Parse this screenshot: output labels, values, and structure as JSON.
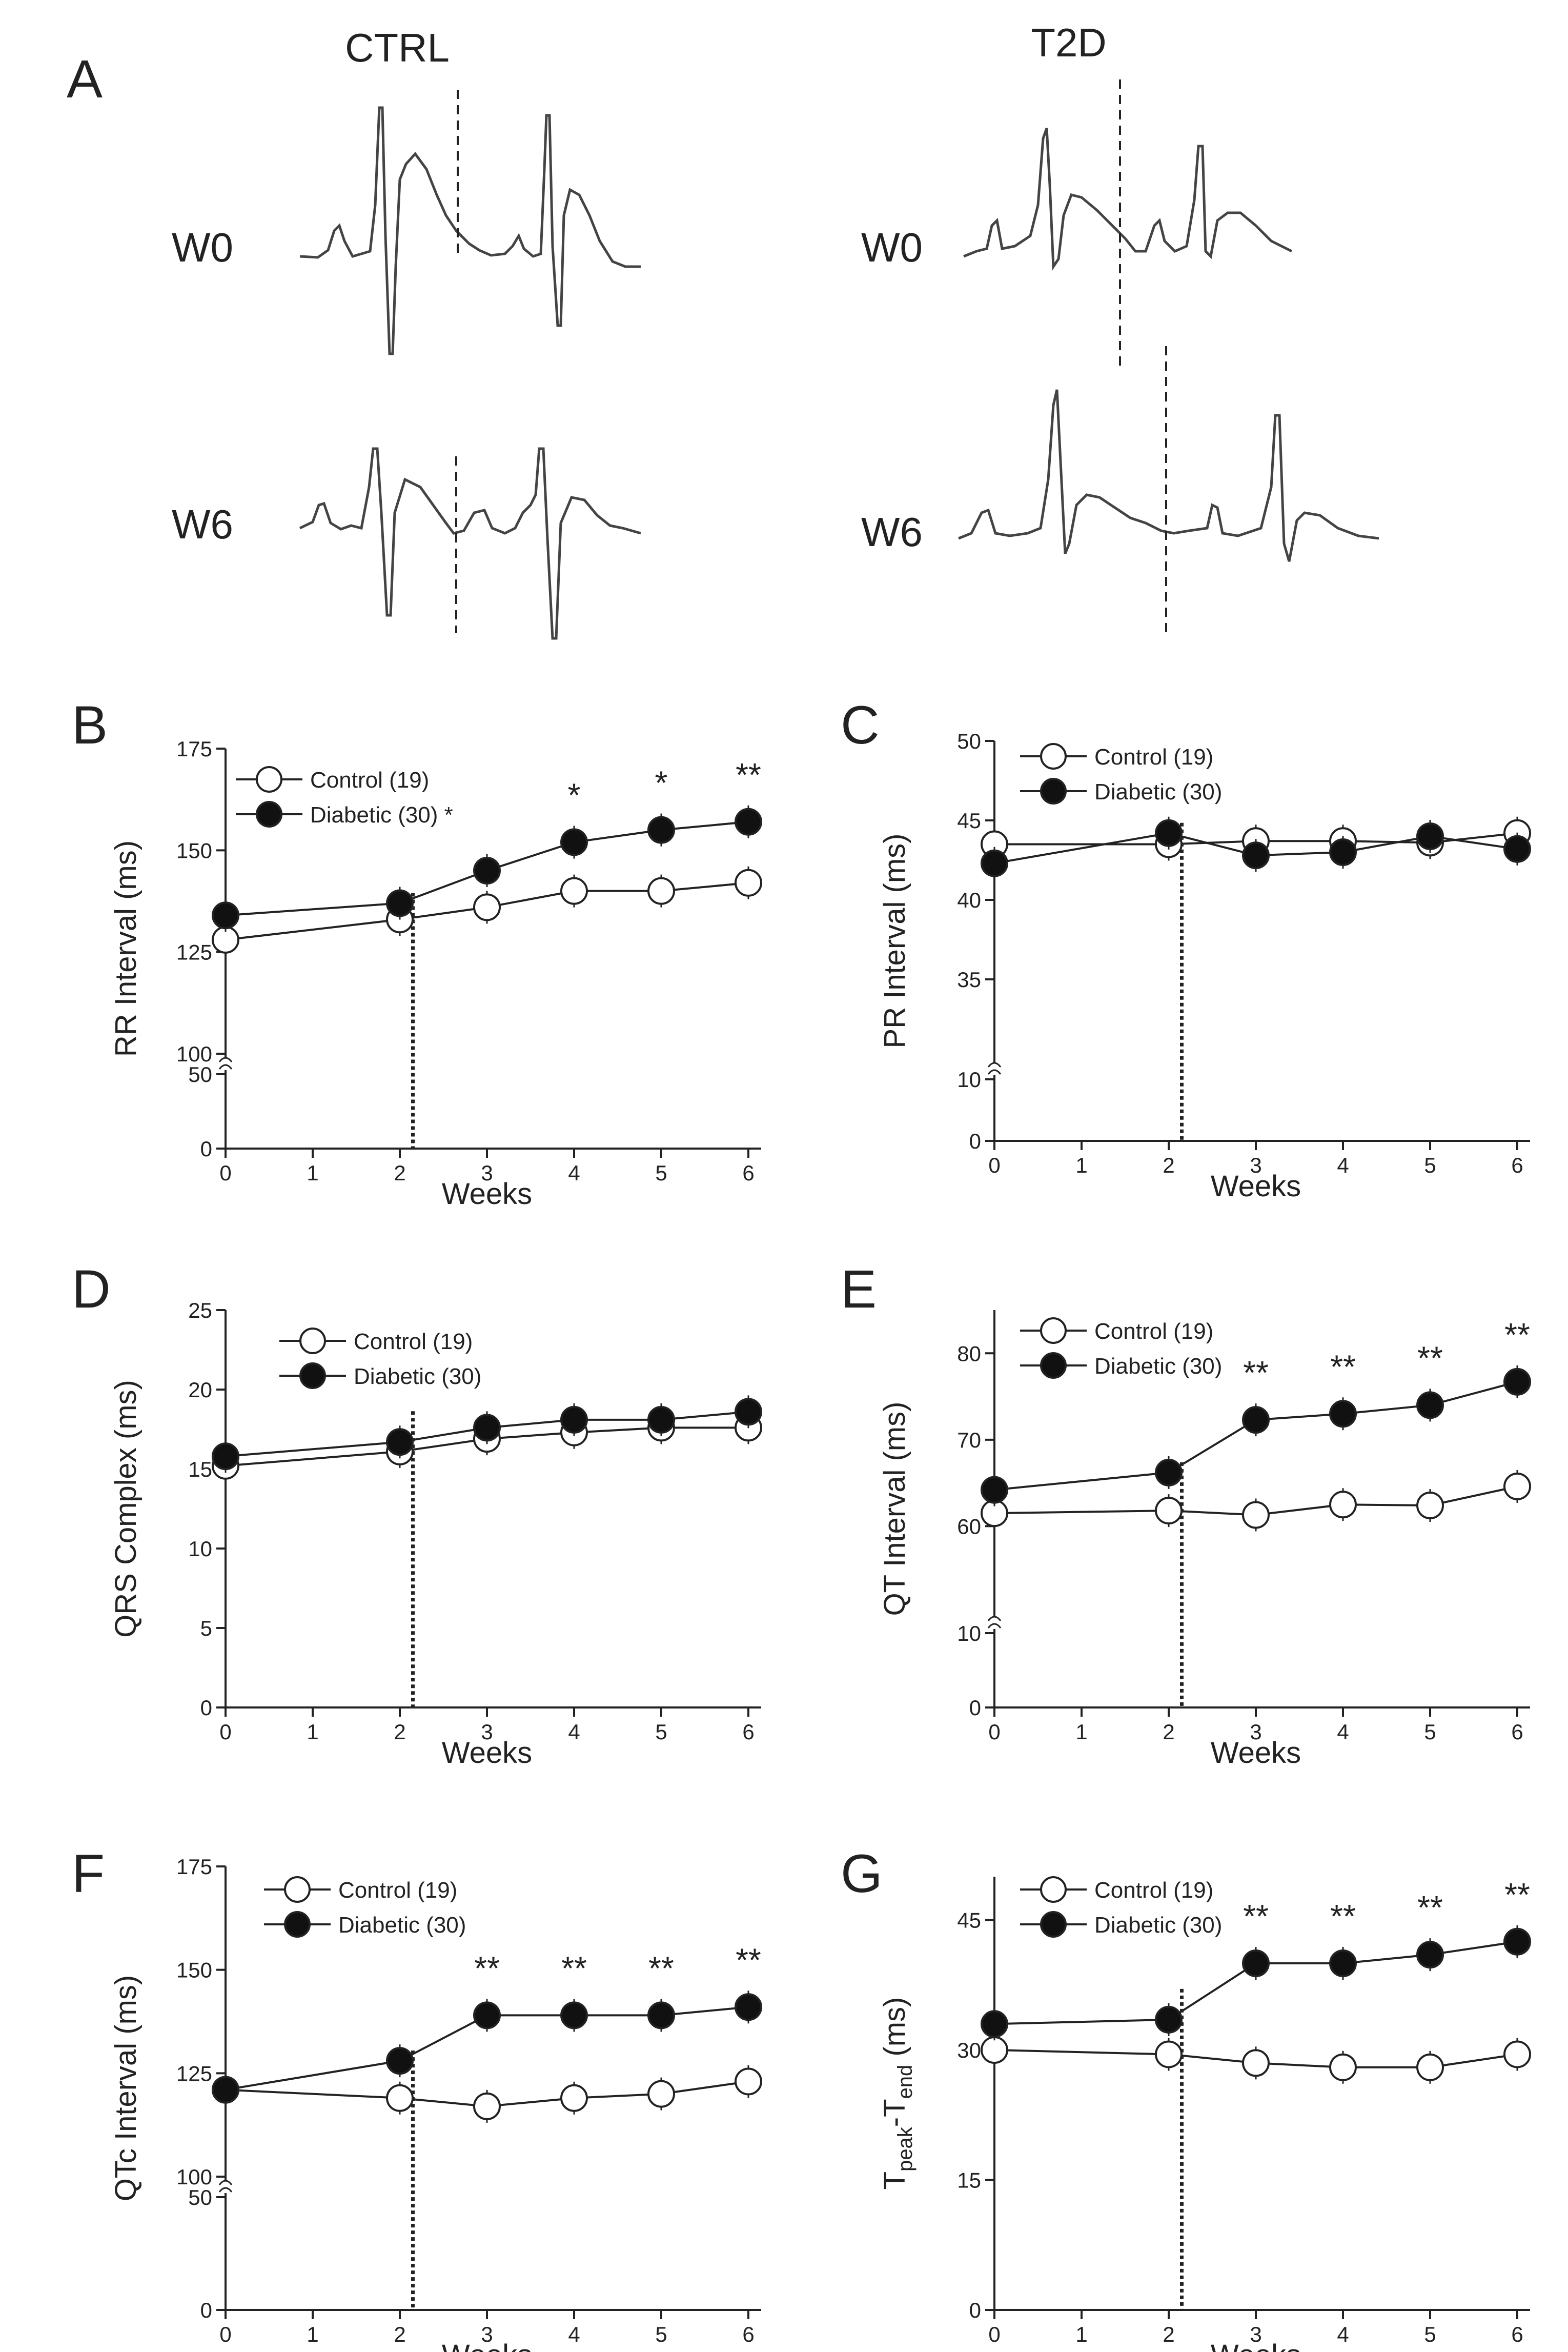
{
  "panel_a": {
    "letter": "A",
    "columns": [
      {
        "title": "CTRL",
        "rows": [
          "W0",
          "W6"
        ]
      },
      {
        "title": "T2D",
        "rows": [
          "W0",
          "W6"
        ]
      }
    ]
  },
  "colors": {
    "axis": "#222222",
    "control_fill": "#ffffff",
    "diabetic_fill": "#111111",
    "trace": "#444444"
  },
  "chart_data": [
    {
      "panel": "B",
      "type": "line",
      "xlabel": "Weeks",
      "ylabel": "RR Interval (ms)",
      "x": [
        0,
        2,
        3,
        4,
        5,
        6
      ],
      "xticks": [
        "0",
        "1",
        "2",
        "3",
        "4",
        "5",
        "6"
      ],
      "axis_break": {
        "lower": [
          0,
          50
        ],
        "upper": [
          100,
          175
        ]
      },
      "yticks": [
        0,
        50,
        100,
        125,
        150,
        175
      ],
      "intervention_week": 2.15,
      "series": [
        {
          "name": "Control (19)",
          "marker": "open",
          "values": [
            128,
            133,
            136,
            140,
            140,
            142
          ]
        },
        {
          "name": "Diabetic (30)",
          "marker": "filled",
          "values": [
            134,
            137,
            145,
            152,
            155,
            157
          ]
        }
      ],
      "legend_mark": "*",
      "significance": [
        {
          "x": 4,
          "label": "*"
        },
        {
          "x": 5,
          "label": "*"
        },
        {
          "x": 6,
          "label": "**"
        }
      ]
    },
    {
      "panel": "C",
      "type": "line",
      "xlabel": "Weeks",
      "ylabel": "PR Interval (ms)",
      "x": [
        0,
        2,
        3,
        4,
        5,
        6
      ],
      "xticks": [
        "0",
        "1",
        "2",
        "3",
        "4",
        "5",
        "6"
      ],
      "axis_break": {
        "lower": [
          0,
          10
        ],
        "upper": [
          30,
          50
        ]
      },
      "yticks": [
        0,
        10,
        35,
        40,
        45,
        50
      ],
      "intervention_week": 2.15,
      "series": [
        {
          "name": "Control (19)",
          "marker": "open",
          "values": [
            43.5,
            43.5,
            43.7,
            43.7,
            43.6,
            44.2
          ]
        },
        {
          "name": "Diabetic (30)",
          "marker": "filled",
          "values": [
            42.3,
            44.2,
            42.8,
            43.0,
            44.0,
            43.2
          ]
        }
      ],
      "legend_mark": "",
      "significance": []
    },
    {
      "panel": "D",
      "type": "line",
      "xlabel": "Weeks",
      "ylabel": "QRS Complex (ms)",
      "x": [
        0,
        2,
        3,
        4,
        5,
        6
      ],
      "xticks": [
        "0",
        "1",
        "2",
        "3",
        "4",
        "5",
        "6"
      ],
      "axis_break": null,
      "yticks": [
        0,
        5,
        10,
        15,
        20,
        25
      ],
      "ylim": [
        0,
        25
      ],
      "intervention_week": 2.15,
      "series": [
        {
          "name": "Control (19)",
          "marker": "open",
          "values": [
            15.2,
            16.1,
            16.9,
            17.3,
            17.6,
            17.6
          ]
        },
        {
          "name": "Diabetic (30)",
          "marker": "filled",
          "values": [
            15.8,
            16.7,
            17.6,
            18.1,
            18.1,
            18.6
          ]
        }
      ],
      "legend_mark": "",
      "significance": []
    },
    {
      "panel": "E",
      "type": "line",
      "xlabel": "Weeks",
      "ylabel": "QT Interval (ms)",
      "x": [
        0,
        2,
        3,
        4,
        5,
        6
      ],
      "xticks": [
        "0",
        "1",
        "2",
        "3",
        "4",
        "5",
        "6"
      ],
      "axis_break": {
        "lower": [
          0,
          10
        ],
        "upper": [
          50,
          85
        ]
      },
      "yticks": [
        0,
        10,
        60,
        70,
        80
      ],
      "intervention_week": 2.15,
      "series": [
        {
          "name": "Control (19)",
          "marker": "open",
          "values": [
            61.5,
            61.8,
            61.3,
            62.5,
            62.4,
            64.6
          ]
        },
        {
          "name": "Diabetic (30)",
          "marker": "filled",
          "values": [
            64.2,
            66.2,
            72.3,
            73.0,
            74.0,
            76.7
          ]
        }
      ],
      "legend_mark": "",
      "significance": [
        {
          "x": 3,
          "label": "**"
        },
        {
          "x": 4,
          "label": "**"
        },
        {
          "x": 5,
          "label": "**"
        },
        {
          "x": 6,
          "label": "**"
        }
      ]
    },
    {
      "panel": "F",
      "type": "line",
      "xlabel": "Weeks",
      "ylabel": "QTc Interval (ms)",
      "x": [
        0,
        2,
        3,
        4,
        5,
        6
      ],
      "xticks": [
        "0",
        "1",
        "2",
        "3",
        "4",
        "5",
        "6"
      ],
      "axis_break": {
        "lower": [
          0,
          50
        ],
        "upper": [
          100,
          175
        ]
      },
      "yticks": [
        0,
        50,
        100,
        125,
        150,
        175
      ],
      "intervention_week": 2.15,
      "series": [
        {
          "name": "Control (19)",
          "marker": "open",
          "values": [
            121,
            119,
            117,
            119,
            120,
            123
          ]
        },
        {
          "name": "Diabetic (30)",
          "marker": "filled",
          "values": [
            121,
            128,
            139,
            139,
            139,
            141
          ]
        }
      ],
      "legend_mark": "",
      "significance": [
        {
          "x": 3,
          "label": "**"
        },
        {
          "x": 4,
          "label": "**"
        },
        {
          "x": 5,
          "label": "**"
        },
        {
          "x": 6,
          "label": "**"
        }
      ]
    },
    {
      "panel": "G",
      "type": "line",
      "xlabel": "Weeks",
      "ylabel": "Tpeak-Tend (ms)",
      "ylabel_parts": {
        "main": "T",
        "sub1": "peak",
        "mid": "-T",
        "sub2": "end",
        "tail": " (ms)"
      },
      "x": [
        0,
        2,
        3,
        4,
        5,
        6
      ],
      "xticks": [
        "0",
        "1",
        "2",
        "3",
        "4",
        "5",
        "6"
      ],
      "axis_break": null,
      "yticks": [
        0,
        15,
        30,
        45
      ],
      "ylim": [
        0,
        50
      ],
      "intervention_week": 2.15,
      "series": [
        {
          "name": "Control (19)",
          "marker": "open",
          "values": [
            30,
            29.5,
            28.5,
            28,
            28,
            29.5
          ]
        },
        {
          "name": "Diabetic (30)",
          "marker": "filled",
          "values": [
            33,
            33.5,
            40,
            40,
            41,
            42.5
          ]
        }
      ],
      "legend_mark": "",
      "significance": [
        {
          "x": 3,
          "label": "**"
        },
        {
          "x": 4,
          "label": "**"
        },
        {
          "x": 5,
          "label": "**"
        },
        {
          "x": 6,
          "label": "**"
        }
      ]
    }
  ]
}
